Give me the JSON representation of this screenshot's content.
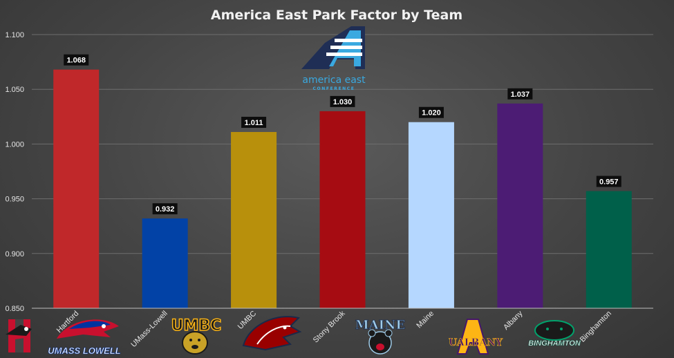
{
  "chart_data": {
    "type": "bar",
    "title": "America East Park Factor by Team",
    "xlabel": "",
    "ylabel": "",
    "categories": [
      "Hartford",
      "UMass-Lowell",
      "UMBC",
      "Stony Brook",
      "Maine",
      "Albany",
      "Binghamton"
    ],
    "values": [
      1.068,
      0.932,
      1.011,
      1.03,
      1.02,
      1.037,
      0.957
    ],
    "data_labels": [
      "1.068",
      "0.932",
      "1.011",
      "1.030",
      "1.020",
      "1.037",
      "0.957"
    ],
    "colors": [
      "#c0282a",
      "#0242a6",
      "#b8900c",
      "#a60c12",
      "#b5d7ff",
      "#4c1c74",
      "#00604a"
    ],
    "ylim": [
      0.85,
      1.1
    ],
    "yticks": [
      "0.850",
      "0.900",
      "0.950",
      "1.000",
      "1.050",
      "1.100"
    ],
    "ytick_values": [
      0.85,
      0.9,
      0.95,
      1.0,
      1.05,
      1.1
    ],
    "grid": true,
    "legend": "none"
  },
  "conference_logo": {
    "name": "america east",
    "subtitle": "CONFERENCE",
    "color": "#3aa9e0"
  },
  "team_logos": [
    {
      "team": "Hartford",
      "icon": "hartford-hawk-icon",
      "color": "#c8102e"
    },
    {
      "team": "UMass-Lowell",
      "icon": "umass-lowell-river-hawk-icon",
      "text": "UMASS LOWELL",
      "color": "#0033a0"
    },
    {
      "team": "UMBC",
      "icon": "umbc-retriever-icon",
      "text": "UMBC",
      "color": "#fdb515"
    },
    {
      "team": "Stony Brook",
      "icon": "stony-brook-seawolf-icon",
      "color": "#990000"
    },
    {
      "team": "Maine",
      "icon": "maine-black-bear-icon",
      "text": "MAINE",
      "color": "#9ecbe8"
    },
    {
      "team": "Albany",
      "icon": "albany-great-dane-icon",
      "text": "UALBANY",
      "color": "#46166b"
    },
    {
      "team": "Binghamton",
      "icon": "binghamton-bearcat-icon",
      "text": "BINGHAMTON",
      "color": "#005a43"
    }
  ]
}
